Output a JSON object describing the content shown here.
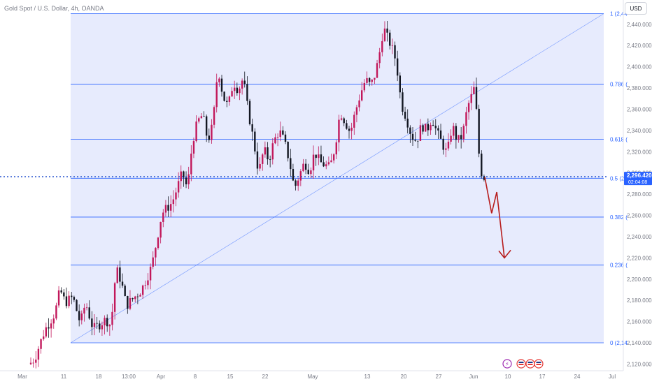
{
  "symbol_title": "Gold Spot / U.S. Dollar, 4h, OANDA",
  "currency_label": "USD",
  "price_label": {
    "price": "2,296.420",
    "countdown": "02:04:08"
  },
  "colors": {
    "up_candle": "#c2185b",
    "down_candle": "#131722",
    "fib_line": "#2962ff",
    "fib_fill": "#e3e7fd",
    "price_line": "#1848cc",
    "arrow": "#b71c1c",
    "axis_text": "#787b86"
  },
  "chart_data": {
    "type": "candlestick",
    "y_axis": {
      "ylim": [
        2115,
        2455
      ],
      "ticks": [
        2120,
        2140,
        2160,
        2180,
        2200,
        2220,
        2240,
        2260,
        2280,
        2300,
        2320,
        2340,
        2360,
        2380,
        2400,
        2420,
        2440
      ],
      "tick_labels": [
        "2,120.000",
        "2,140.000",
        "2,160.000",
        "2,180.000",
        "2,200.000",
        "2,220.000",
        "2,240.000",
        "2,260.000",
        "2,280.000",
        "2,300.000",
        "2,320.000",
        "2,340.000",
        "2,360.000",
        "2,380.000",
        "2,400.000",
        "2,420.000",
        "2,440.000"
      ]
    },
    "x_axis": {
      "tick_labels": [
        "Mar",
        "11",
        "18",
        "13:00",
        "Apr",
        "8",
        "15",
        "22",
        "May",
        "13",
        "20",
        "27",
        "Jun",
        "10",
        "17",
        "24",
        "Jul"
      ]
    },
    "current_price": 2296.42,
    "fibonacci": [
      {
        "level": 1,
        "label": "1 (2,44",
        "price": 2450
      },
      {
        "level": 0.786,
        "label": "0.786 (",
        "price": 2383.7
      },
      {
        "level": 0.618,
        "label": "0.618 (",
        "price": 2331.6
      },
      {
        "level": 0.5,
        "label": "0.5 (2,",
        "price": 2295
      },
      {
        "level": 0.382,
        "label": "0.382 (",
        "price": 2258.4
      },
      {
        "level": 0.236,
        "label": "0.236 (",
        "price": 2213.2
      },
      {
        "level": 0,
        "label": "0 (2,14",
        "price": 2140
      }
    ],
    "anchors": [
      {
        "t": 0,
        "v": 2120
      },
      {
        "t": 2,
        "v": 2125
      },
      {
        "t": 6,
        "v": 2152
      },
      {
        "t": 10,
        "v": 2168
      },
      {
        "t": 12,
        "v": 2190
      },
      {
        "t": 14,
        "v": 2178
      },
      {
        "t": 17,
        "v": 2183
      },
      {
        "t": 20,
        "v": 2158
      },
      {
        "t": 22,
        "v": 2178
      },
      {
        "t": 25,
        "v": 2153
      },
      {
        "t": 30,
        "v": 2162
      },
      {
        "t": 32,
        "v": 2156
      },
      {
        "t": 34,
        "v": 2210
      },
      {
        "t": 36,
        "v": 2198
      },
      {
        "t": 38,
        "v": 2175
      },
      {
        "t": 44,
        "v": 2190
      },
      {
        "t": 48,
        "v": 2212
      },
      {
        "t": 52,
        "v": 2262
      },
      {
        "t": 56,
        "v": 2272
      },
      {
        "t": 60,
        "v": 2300
      },
      {
        "t": 62,
        "v": 2285
      },
      {
        "t": 64,
        "v": 2330
      },
      {
        "t": 66,
        "v": 2348
      },
      {
        "t": 68,
        "v": 2355
      },
      {
        "t": 70,
        "v": 2330
      },
      {
        "t": 72,
        "v": 2345
      },
      {
        "t": 74,
        "v": 2400
      },
      {
        "t": 76,
        "v": 2372
      },
      {
        "t": 78,
        "v": 2362
      },
      {
        "t": 80,
        "v": 2386
      },
      {
        "t": 82,
        "v": 2378
      },
      {
        "t": 84,
        "v": 2390
      },
      {
        "t": 85,
        "v": 2370
      },
      {
        "t": 88,
        "v": 2330
      },
      {
        "t": 90,
        "v": 2300
      },
      {
        "t": 92,
        "v": 2322
      },
      {
        "t": 94,
        "v": 2312
      },
      {
        "t": 96,
        "v": 2330
      },
      {
        "t": 98,
        "v": 2340
      },
      {
        "t": 100,
        "v": 2330
      },
      {
        "t": 102,
        "v": 2312
      },
      {
        "t": 104,
        "v": 2285
      },
      {
        "t": 106,
        "v": 2298
      },
      {
        "t": 108,
        "v": 2310
      },
      {
        "t": 110,
        "v": 2302
      },
      {
        "t": 112,
        "v": 2320
      },
      {
        "t": 114,
        "v": 2310
      },
      {
        "t": 118,
        "v": 2305
      },
      {
        "t": 120,
        "v": 2325
      },
      {
        "t": 122,
        "v": 2358
      },
      {
        "t": 124,
        "v": 2348
      },
      {
        "t": 126,
        "v": 2338
      },
      {
        "t": 128,
        "v": 2358
      },
      {
        "t": 130,
        "v": 2375
      },
      {
        "t": 132,
        "v": 2388
      },
      {
        "t": 134,
        "v": 2382
      },
      {
        "t": 136,
        "v": 2395
      },
      {
        "t": 138,
        "v": 2420
      },
      {
        "t": 139,
        "v": 2438
      },
      {
        "t": 140,
        "v": 2430
      },
      {
        "t": 142,
        "v": 2420
      },
      {
        "t": 144,
        "v": 2405
      },
      {
        "t": 146,
        "v": 2365
      },
      {
        "t": 148,
        "v": 2352
      },
      {
        "t": 150,
        "v": 2335
      },
      {
        "t": 152,
        "v": 2330
      },
      {
        "t": 154,
        "v": 2345
      },
      {
        "t": 156,
        "v": 2340
      },
      {
        "t": 158,
        "v": 2352
      },
      {
        "t": 160,
        "v": 2338
      },
      {
        "t": 162,
        "v": 2328
      },
      {
        "t": 164,
        "v": 2318
      },
      {
        "t": 166,
        "v": 2345
      },
      {
        "t": 168,
        "v": 2330
      },
      {
        "t": 170,
        "v": 2335
      },
      {
        "t": 172,
        "v": 2362
      },
      {
        "t": 174,
        "v": 2375
      },
      {
        "t": 175,
        "v": 2383
      },
      {
        "t": 176,
        "v": 2332
      },
      {
        "t": 177,
        "v": 2305
      },
      {
        "t": 178,
        "v": 2296
      }
    ],
    "projection": [
      {
        "t": 178.3,
        "v": 2296
      },
      {
        "t": 181,
        "v": 2262
      },
      {
        "t": 183,
        "v": 2282
      },
      {
        "t": 186,
        "v": 2220
      }
    ]
  }
}
